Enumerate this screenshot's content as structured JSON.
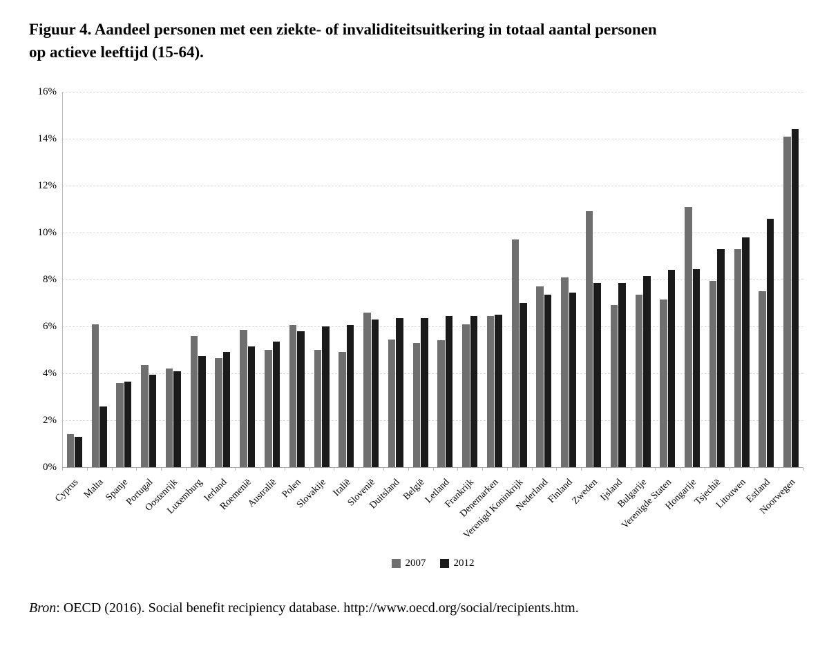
{
  "title": {
    "line1": "Figuur 4. Aandeel personen met een ziekte- of invaliditeitsuitkering in totaal aantal personen",
    "line2": "op actieve leeftijd (15-64)."
  },
  "source": {
    "label": "Bron",
    "text": ": OECD (2016). Social benefit recipiency database. http://www.oecd.org/social/recipients.htm."
  },
  "colors": {
    "series_2007": "#6f6f6f",
    "series_2012": "#1a1a1a",
    "gridline": "#d9d9d9",
    "axis": "#a6a6a6"
  },
  "chart_data": {
    "type": "bar",
    "grouped": true,
    "title": "Figuur 4. Aandeel personen met een ziekte- of invaliditeitsuitkering in totaal aantal personen op actieve leeftijd (15-64).",
    "xlabel": "",
    "ylabel": "",
    "ylim": [
      0,
      16
    ],
    "yticks": [
      0,
      2,
      4,
      6,
      8,
      10,
      12,
      14,
      16
    ],
    "ytick_suffix": "%",
    "grid": "horizontal-dashed",
    "legend_position": "bottom-center",
    "categories": [
      "Cyprus",
      "Malta",
      "Spanje",
      "Portugal",
      "Oostenrijk",
      "Luxemburg",
      "Ierland",
      "Roemenië",
      "Australië",
      "Polen",
      "Slovakije",
      "Italië",
      "Slovenië",
      "Duitsland",
      "België",
      "Letland",
      "Frankrijk",
      "Denemarken",
      "Verenigd Koninkrijk",
      "Nederland",
      "Finland",
      "Zweden",
      "Ijsland",
      "Bulgarije",
      "Verenigde Staten",
      "Hongarije",
      "Tsjechië",
      "Litouwen",
      "Estland",
      "Noorwegen"
    ],
    "series": [
      {
        "name": "2007",
        "color": "#6f6f6f",
        "values": [
          1.4,
          6.1,
          3.6,
          4.35,
          4.2,
          5.6,
          4.65,
          5.85,
          5.0,
          6.05,
          5.0,
          4.9,
          6.6,
          5.45,
          5.3,
          5.4,
          6.1,
          6.45,
          9.7,
          7.7,
          8.1,
          10.9,
          6.9,
          7.35,
          7.15,
          11.1,
          7.95,
          9.3,
          7.5,
          14.1
        ]
      },
      {
        "name": "2012",
        "color": "#1a1a1a",
        "values": [
          1.3,
          2.6,
          3.65,
          3.95,
          4.1,
          4.75,
          4.9,
          5.15,
          5.35,
          5.8,
          6.0,
          6.05,
          6.3,
          6.35,
          6.35,
          6.45,
          6.45,
          6.5,
          7.0,
          7.35,
          7.45,
          7.85,
          7.85,
          8.15,
          8.4,
          8.45,
          9.3,
          9.8,
          10.6,
          14.4
        ]
      }
    ]
  }
}
